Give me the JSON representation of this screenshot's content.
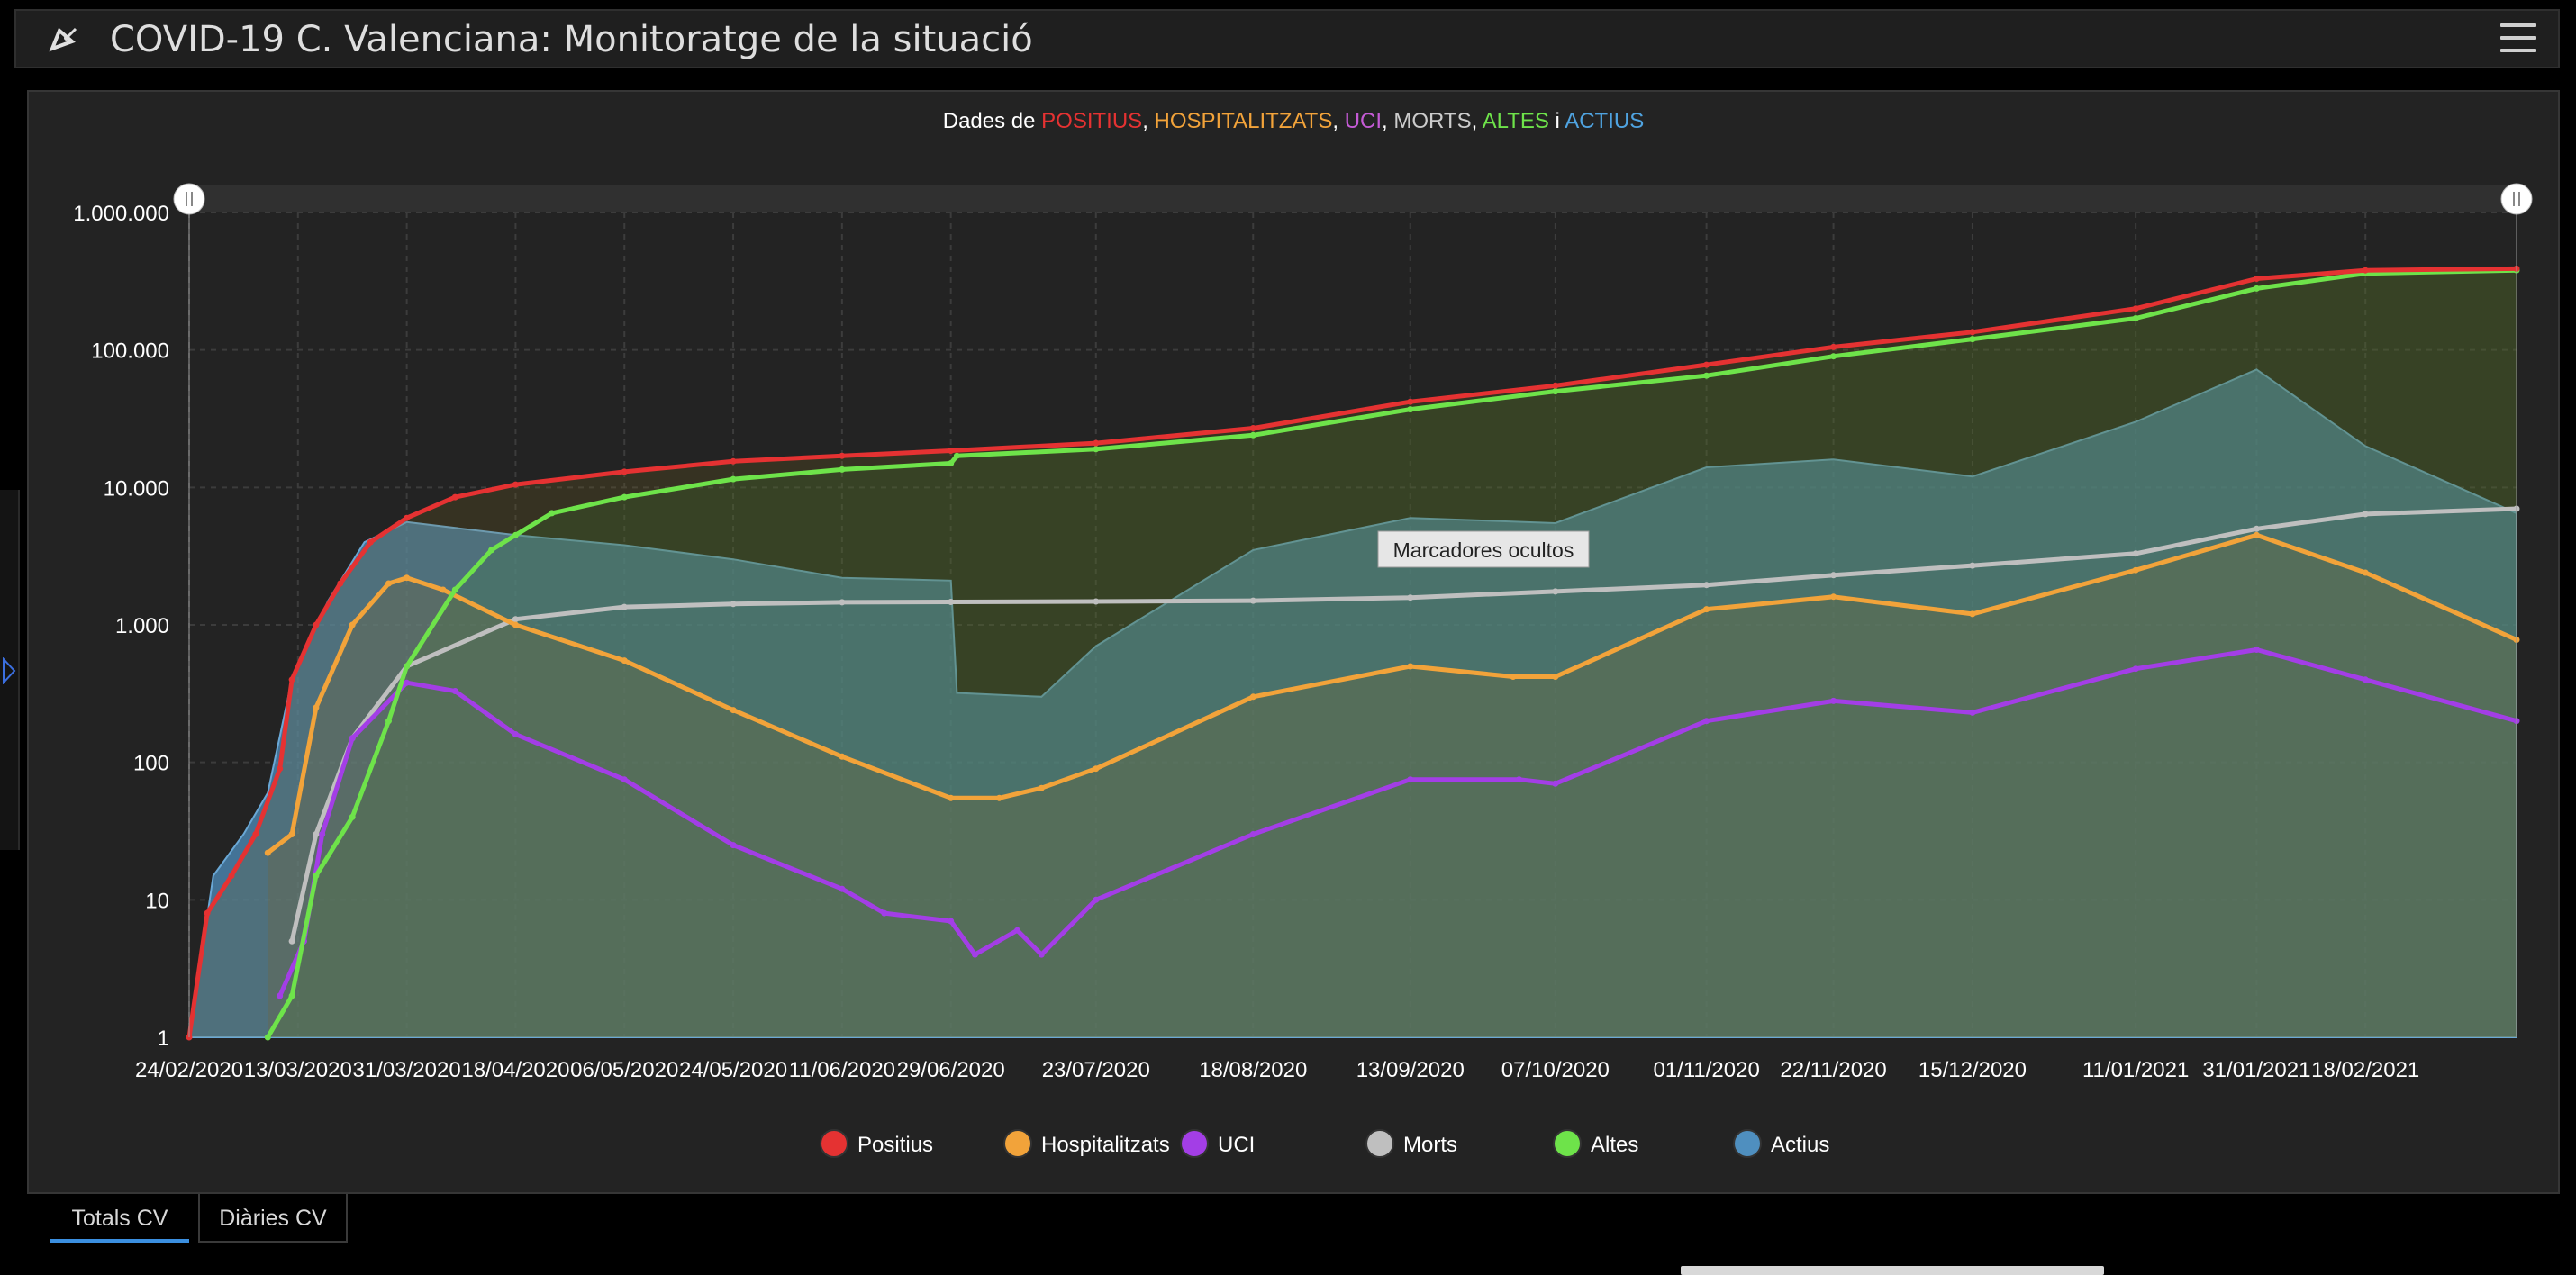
{
  "header": {
    "title": "COVID-19 C. Valenciana: Monitoratge de la situació",
    "logo_icon": "satellite-dish-icon",
    "menu_icon": "hamburger-menu-icon"
  },
  "side_panel": {
    "toggle_icon": "chevron-right-icon"
  },
  "tabs": [
    {
      "label": "Totals CV",
      "active": true
    },
    {
      "label": "Diàries CV",
      "active": false
    }
  ],
  "chart_data": {
    "type": "line",
    "title": {
      "prefix": "Dades de ",
      "positius": "POSITIUS",
      "sep1": ", ",
      "hospitalitzats": "HOSPITALITZATS",
      "sep2": ", ",
      "uci": "UCI",
      "sep3": ", ",
      "morts": "MORTS",
      "sep4": ", ",
      "altes": "ALTES",
      "sep5": " i ",
      "actius": "ACTIUS"
    },
    "y_scale": "log",
    "ylim": [
      1,
      1000000
    ],
    "y_ticks": [
      1,
      10,
      100,
      1000,
      10000,
      100000,
      1000000
    ],
    "y_tick_labels": [
      "1",
      "10",
      "100",
      "1.000",
      "10.000",
      "100.000",
      "1.000.000"
    ],
    "x_ticks": [
      "24/02/2020",
      "13/03/2020",
      "31/03/2020",
      "18/04/2020",
      "06/05/2020",
      "24/05/2020",
      "11/06/2020",
      "29/06/2020",
      "23/07/2020",
      "18/08/2020",
      "13/09/2020",
      "07/10/2020",
      "01/11/2020",
      "22/11/2020",
      "15/12/2020",
      "11/01/2021",
      "31/01/2021",
      "18/02/2021"
    ],
    "x_range": [
      "24/02/2020",
      "15/03/2021"
    ],
    "grid": true,
    "legend_position": "bottom",
    "tooltip": "Marcadores ocultos",
    "series": [
      {
        "name": "Positius",
        "color": "#e53232",
        "points": [
          [
            "24/02/2020",
            1
          ],
          [
            "27/02/2020",
            8
          ],
          [
            "02/03/2020",
            15
          ],
          [
            "06/03/2020",
            30
          ],
          [
            "10/03/2020",
            90
          ],
          [
            "12/03/2020",
            400
          ],
          [
            "16/03/2020",
            1000
          ],
          [
            "20/03/2020",
            2000
          ],
          [
            "25/03/2020",
            4000
          ],
          [
            "31/03/2020",
            6000
          ],
          [
            "08/04/2020",
            8500
          ],
          [
            "18/04/2020",
            10500
          ],
          [
            "06/05/2020",
            13000
          ],
          [
            "24/05/2020",
            15500
          ],
          [
            "11/06/2020",
            17000
          ],
          [
            "29/06/2020",
            18500
          ],
          [
            "23/07/2020",
            21000
          ],
          [
            "18/08/2020",
            27000
          ],
          [
            "13/09/2020",
            42000
          ],
          [
            "07/10/2020",
            55000
          ],
          [
            "01/11/2020",
            78000
          ],
          [
            "22/11/2020",
            105000
          ],
          [
            "15/12/2020",
            135000
          ],
          [
            "11/01/2021",
            200000
          ],
          [
            "31/01/2021",
            330000
          ],
          [
            "18/02/2021",
            380000
          ],
          [
            "15/03/2021",
            390000
          ]
        ]
      },
      {
        "name": "Hospitalitzats",
        "color": "#f2a33a",
        "points": [
          [
            "08/03/2020",
            22
          ],
          [
            "12/03/2020",
            30
          ],
          [
            "16/03/2020",
            250
          ],
          [
            "22/03/2020",
            1000
          ],
          [
            "28/03/2020",
            2000
          ],
          [
            "31/03/2020",
            2200
          ],
          [
            "06/04/2020",
            1800
          ],
          [
            "18/04/2020",
            1000
          ],
          [
            "06/05/2020",
            550
          ],
          [
            "24/05/2020",
            240
          ],
          [
            "11/06/2020",
            110
          ],
          [
            "29/06/2020",
            55
          ],
          [
            "07/07/2020",
            55
          ],
          [
            "14/07/2020",
            65
          ],
          [
            "23/07/2020",
            90
          ],
          [
            "18/08/2020",
            300
          ],
          [
            "13/09/2020",
            500
          ],
          [
            "30/09/2020",
            420
          ],
          [
            "07/10/2020",
            420
          ],
          [
            "01/11/2020",
            1300
          ],
          [
            "22/11/2020",
            1600
          ],
          [
            "15/12/2020",
            1200
          ],
          [
            "11/01/2021",
            2500
          ],
          [
            "31/01/2021",
            4500
          ],
          [
            "18/02/2021",
            2400
          ],
          [
            "15/03/2021",
            780
          ]
        ]
      },
      {
        "name": "UCI",
        "color": "#a33ee6",
        "points": [
          [
            "10/03/2020",
            2
          ],
          [
            "14/03/2020",
            5
          ],
          [
            "17/03/2020",
            30
          ],
          [
            "22/03/2020",
            150
          ],
          [
            "31/03/2020",
            380
          ],
          [
            "08/04/2020",
            330
          ],
          [
            "18/04/2020",
            160
          ],
          [
            "06/05/2020",
            75
          ],
          [
            "24/05/2020",
            25
          ],
          [
            "11/06/2020",
            12
          ],
          [
            "18/06/2020",
            8
          ],
          [
            "29/06/2020",
            7
          ],
          [
            "03/07/2020",
            4
          ],
          [
            "10/07/2020",
            6
          ],
          [
            "14/07/2020",
            4
          ],
          [
            "23/07/2020",
            10
          ],
          [
            "18/08/2020",
            30
          ],
          [
            "13/09/2020",
            75
          ],
          [
            "01/10/2020",
            75
          ],
          [
            "07/10/2020",
            70
          ],
          [
            "01/11/2020",
            200
          ],
          [
            "22/11/2020",
            280
          ],
          [
            "15/12/2020",
            230
          ],
          [
            "11/01/2021",
            480
          ],
          [
            "31/01/2021",
            660
          ],
          [
            "18/02/2021",
            400
          ],
          [
            "15/03/2021",
            200
          ]
        ]
      },
      {
        "name": "Morts",
        "color": "#bfbfbf",
        "points": [
          [
            "12/03/2020",
            5
          ],
          [
            "16/03/2020",
            30
          ],
          [
            "22/03/2020",
            150
          ],
          [
            "31/03/2020",
            500
          ],
          [
            "18/04/2020",
            1100
          ],
          [
            "06/05/2020",
            1350
          ],
          [
            "24/05/2020",
            1420
          ],
          [
            "11/06/2020",
            1460
          ],
          [
            "29/06/2020",
            1470
          ],
          [
            "23/07/2020",
            1480
          ],
          [
            "18/08/2020",
            1500
          ],
          [
            "13/09/2020",
            1580
          ],
          [
            "07/10/2020",
            1750
          ],
          [
            "01/11/2020",
            1950
          ],
          [
            "22/11/2020",
            2300
          ],
          [
            "15/12/2020",
            2700
          ],
          [
            "11/01/2021",
            3300
          ],
          [
            "31/01/2021",
            5000
          ],
          [
            "18/02/2021",
            6400
          ],
          [
            "15/03/2021",
            7000
          ]
        ]
      },
      {
        "name": "Altes",
        "color": "#6ee34a",
        "points": [
          [
            "08/03/2020",
            1
          ],
          [
            "12/03/2020",
            2
          ],
          [
            "16/03/2020",
            15
          ],
          [
            "22/03/2020",
            40
          ],
          [
            "28/03/2020",
            200
          ],
          [
            "31/03/2020",
            500
          ],
          [
            "08/04/2020",
            1800
          ],
          [
            "14/04/2020",
            3500
          ],
          [
            "18/04/2020",
            4500
          ],
          [
            "24/04/2020",
            6500
          ],
          [
            "06/05/2020",
            8500
          ],
          [
            "24/05/2020",
            11500
          ],
          [
            "11/06/2020",
            13500
          ],
          [
            "29/06/2020",
            15000
          ],
          [
            "30/06/2020",
            17000
          ],
          [
            "23/07/2020",
            19000
          ],
          [
            "18/08/2020",
            24000
          ],
          [
            "13/09/2020",
            37000
          ],
          [
            "07/10/2020",
            50000
          ],
          [
            "01/11/2020",
            65000
          ],
          [
            "22/11/2020",
            90000
          ],
          [
            "15/12/2020",
            120000
          ],
          [
            "11/01/2021",
            170000
          ],
          [
            "31/01/2021",
            280000
          ],
          [
            "18/02/2021",
            360000
          ],
          [
            "15/03/2021",
            380000
          ]
        ]
      },
      {
        "name": "Actius",
        "color": "#4f8fbf",
        "points": [
          [
            "24/02/2020",
            1
          ],
          [
            "28/02/2020",
            15
          ],
          [
            "04/03/2020",
            30
          ],
          [
            "08/03/2020",
            60
          ],
          [
            "12/03/2020",
            400
          ],
          [
            "18/03/2020",
            1500
          ],
          [
            "24/03/2020",
            4000
          ],
          [
            "31/03/2020",
            5600
          ],
          [
            "18/04/2020",
            4500
          ],
          [
            "06/05/2020",
            3800
          ],
          [
            "24/05/2020",
            3000
          ],
          [
            "11/06/2020",
            2200
          ],
          [
            "29/06/2020",
            2100
          ],
          [
            "30/06/2020",
            320
          ],
          [
            "14/07/2020",
            300
          ],
          [
            "23/07/2020",
            700
          ],
          [
            "18/08/2020",
            3500
          ],
          [
            "13/09/2020",
            6000
          ],
          [
            "07/10/2020",
            5500
          ],
          [
            "01/11/2020",
            14000
          ],
          [
            "22/11/2020",
            16000
          ],
          [
            "15/12/2020",
            12000
          ],
          [
            "11/01/2021",
            30000
          ],
          [
            "31/01/2021",
            72000
          ],
          [
            "18/02/2021",
            20000
          ],
          [
            "15/03/2021",
            6500
          ]
        ]
      }
    ]
  }
}
